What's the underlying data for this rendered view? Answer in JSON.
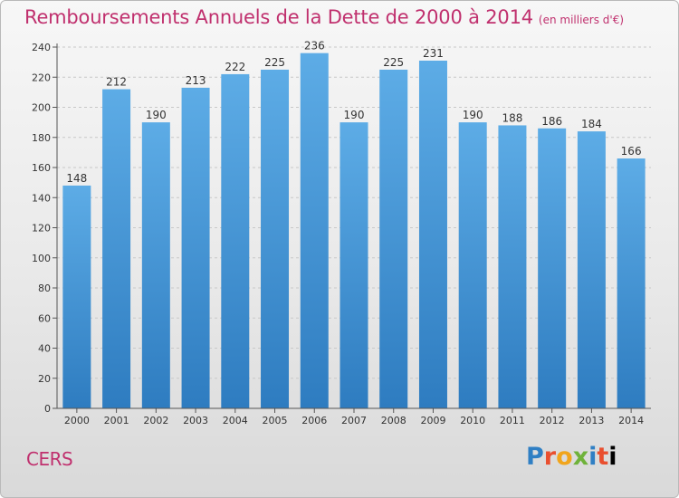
{
  "chart_data": {
    "type": "bar",
    "title": "Remboursements Annuels de la Dette de 2000 à 2014",
    "unit": "(en milliers d'€)",
    "categories": [
      "2000",
      "2001",
      "2002",
      "2003",
      "2004",
      "2005",
      "2006",
      "2007",
      "2008",
      "2009",
      "2010",
      "2011",
      "2012",
      "2013",
      "2014"
    ],
    "values": [
      148,
      212,
      190,
      213,
      222,
      225,
      236,
      190,
      225,
      231,
      190,
      188,
      186,
      184,
      166
    ],
    "ylim": [
      0,
      240
    ],
    "yticks": [
      0,
      20,
      40,
      60,
      80,
      100,
      120,
      140,
      160,
      180,
      200,
      220,
      240
    ],
    "grid": true,
    "bar_color_top": "#5dace6",
    "bar_color_bottom": "#2e7cc0"
  },
  "footer": {
    "commune": "CERS",
    "logo_letters": [
      "P",
      "r",
      "o",
      "x",
      "i",
      "t",
      "i"
    ]
  }
}
